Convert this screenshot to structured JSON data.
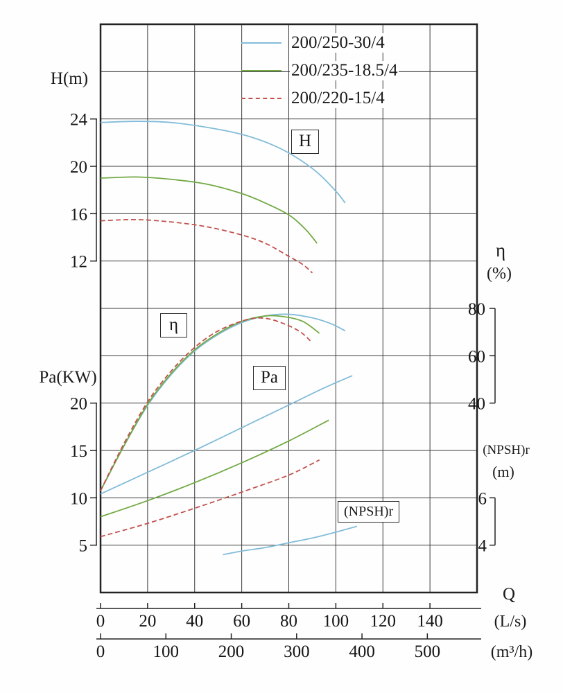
{
  "chart_data": {
    "type": "line",
    "x_axis": {
      "label": "Q",
      "units": [
        {
          "label": "(L/s)",
          "ticks": [
            0,
            20,
            40,
            60,
            80,
            100,
            120,
            140
          ]
        },
        {
          "label": "(m³/h)",
          "ticks": [
            0,
            100,
            200,
            300,
            400,
            500
          ]
        }
      ]
    },
    "axes": {
      "H": {
        "title": "H(m)",
        "ticks": [
          24,
          20,
          16,
          12
        ],
        "range": [
          12,
          24
        ]
      },
      "Pa": {
        "title": "Pa(KW)",
        "ticks": [
          20,
          15,
          10,
          5
        ],
        "range": [
          5,
          20
        ]
      },
      "eta": {
        "title": "η",
        "unit": "(%)",
        "ticks": [
          80,
          60,
          40
        ],
        "range": [
          40,
          80
        ]
      },
      "npsh": {
        "title": "(NPSH)r",
        "unit": "(m)",
        "ticks": [
          6,
          4
        ],
        "range": [
          4,
          6
        ]
      }
    },
    "curve_labels": {
      "H": "H",
      "eta": "η",
      "Pa": "Pa",
      "npsh": "(NPSH)r"
    },
    "legend": [
      {
        "label": "200/250-30/4",
        "color": "#82bcd9",
        "dash": ""
      },
      {
        "label": "200/235-18.5/4",
        "color": "#72a944",
        "dash": ""
      },
      {
        "label": "200/220-15/4",
        "color": "#c2514d",
        "dash": "7 4"
      }
    ],
    "grid": "on",
    "series": [
      {
        "quantity": "H",
        "axis": "H",
        "legend": 0,
        "points": [
          [
            0,
            23.7
          ],
          [
            15,
            23.8
          ],
          [
            30,
            23.7
          ],
          [
            45,
            23.3
          ],
          [
            60,
            22.7
          ],
          [
            72,
            21.9
          ],
          [
            82,
            20.9
          ],
          [
            92,
            19.5
          ],
          [
            100,
            17.9
          ],
          [
            104,
            16.9
          ]
        ]
      },
      {
        "quantity": "H",
        "axis": "H",
        "legend": 1,
        "points": [
          [
            0,
            19.0
          ],
          [
            15,
            19.1
          ],
          [
            30,
            18.9
          ],
          [
            45,
            18.5
          ],
          [
            60,
            17.7
          ],
          [
            70,
            16.9
          ],
          [
            80,
            15.9
          ],
          [
            87,
            14.7
          ],
          [
            92,
            13.5
          ]
        ]
      },
      {
        "quantity": "H",
        "axis": "H",
        "legend": 2,
        "points": [
          [
            0,
            15.4
          ],
          [
            15,
            15.5
          ],
          [
            30,
            15.3
          ],
          [
            45,
            14.9
          ],
          [
            60,
            14.2
          ],
          [
            70,
            13.5
          ],
          [
            80,
            12.4
          ],
          [
            86,
            11.7
          ],
          [
            90,
            11.0
          ]
        ]
      },
      {
        "quantity": "eta",
        "axis": "eta",
        "legend": 0,
        "points": [
          [
            0,
            3
          ],
          [
            10,
            22
          ],
          [
            20,
            39
          ],
          [
            30,
            52
          ],
          [
            40,
            62
          ],
          [
            50,
            69
          ],
          [
            60,
            74
          ],
          [
            70,
            76.8
          ],
          [
            80,
            77.5
          ],
          [
            90,
            76
          ],
          [
            98,
            73.5
          ],
          [
            104,
            70.5
          ]
        ]
      },
      {
        "quantity": "eta",
        "axis": "eta",
        "legend": 1,
        "points": [
          [
            0,
            3
          ],
          [
            10,
            22
          ],
          [
            20,
            39.5
          ],
          [
            30,
            52.5
          ],
          [
            40,
            62.5
          ],
          [
            50,
            69.5
          ],
          [
            60,
            74.5
          ],
          [
            70,
            76.8
          ],
          [
            78,
            76.5
          ],
          [
            86,
            74.5
          ],
          [
            93,
            69.5
          ]
        ]
      },
      {
        "quantity": "eta",
        "axis": "eta",
        "legend": 2,
        "points": [
          [
            0,
            3
          ],
          [
            10,
            23
          ],
          [
            20,
            40.5
          ],
          [
            30,
            53.5
          ],
          [
            40,
            63.5
          ],
          [
            50,
            70.5
          ],
          [
            62,
            75.2
          ],
          [
            70,
            75.8
          ],
          [
            78,
            73.5
          ],
          [
            85,
            70
          ],
          [
            90,
            65.5
          ]
        ]
      },
      {
        "quantity": "Pa",
        "axis": "Pa",
        "legend": 0,
        "points": [
          [
            0,
            10.4
          ],
          [
            20,
            12.7
          ],
          [
            40,
            15.0
          ],
          [
            60,
            17.4
          ],
          [
            80,
            19.8
          ],
          [
            95,
            21.6
          ],
          [
            107,
            22.9
          ]
        ]
      },
      {
        "quantity": "Pa",
        "axis": "Pa",
        "legend": 1,
        "points": [
          [
            0,
            8.0
          ],
          [
            20,
            9.7
          ],
          [
            40,
            11.6
          ],
          [
            60,
            13.7
          ],
          [
            80,
            16.0
          ],
          [
            97,
            18.2
          ]
        ]
      },
      {
        "quantity": "Pa",
        "axis": "Pa",
        "legend": 2,
        "points": [
          [
            0,
            5.9
          ],
          [
            20,
            7.3
          ],
          [
            40,
            8.9
          ],
          [
            60,
            10.6
          ],
          [
            80,
            12.4
          ],
          [
            93,
            14.0
          ]
        ]
      },
      {
        "quantity": "NPSHr",
        "axis": "npsh",
        "legend": 0,
        "points": [
          [
            52,
            3.6
          ],
          [
            60,
            3.75
          ],
          [
            70,
            3.9
          ],
          [
            80,
            4.1
          ],
          [
            90,
            4.3
          ],
          [
            100,
            4.55
          ],
          [
            109,
            4.8
          ]
        ]
      }
    ]
  }
}
